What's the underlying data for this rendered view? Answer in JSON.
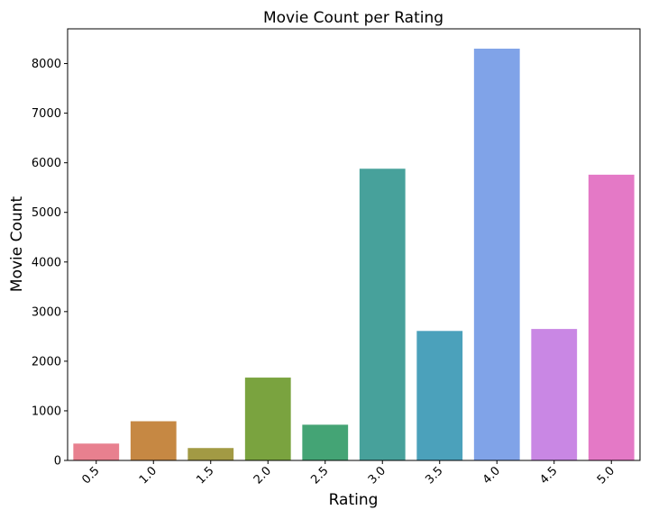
{
  "chart_data": {
    "type": "bar",
    "title": "Movie Count per Rating",
    "xlabel": "Rating",
    "ylabel": "Movie Count",
    "categories": [
      "0.5",
      "1.0",
      "1.5",
      "2.0",
      "2.5",
      "3.0",
      "3.5",
      "4.0",
      "4.5",
      "5.0"
    ],
    "values": [
      340,
      790,
      250,
      1670,
      720,
      5880,
      2610,
      8300,
      2650,
      5760
    ],
    "colors": [
      "#e8808f",
      "#c68843",
      "#a29a44",
      "#7aa33f",
      "#44a475",
      "#47a19b",
      "#4ba1bb",
      "#80a3e8",
      "#c987e4",
      "#e479c6"
    ],
    "ylim": [
      0,
      8700
    ],
    "yticks": [
      0,
      1000,
      2000,
      3000,
      4000,
      5000,
      6000,
      7000,
      8000
    ],
    "grid": false,
    "legend": "none"
  }
}
